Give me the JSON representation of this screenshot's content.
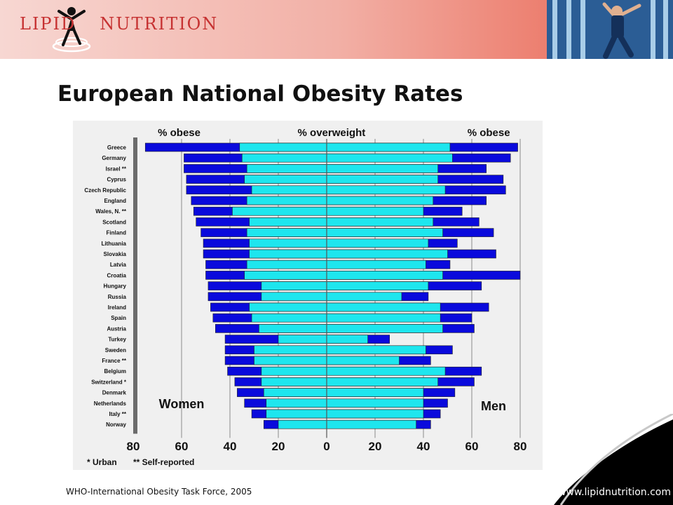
{
  "header": {
    "logo": "LIPID NUTRITION",
    "photo_icon": "athlete-photo"
  },
  "title": "European National Obesity Rates",
  "footer": {
    "source": "WHO-International  Obesity Task Force, 2005",
    "website": "www.lipidnutrition.com"
  },
  "colors": {
    "obese": "#0a0adc",
    "overweight": "#1ee6ee",
    "outline": "#222222",
    "header_accent": "#e9614e"
  },
  "chart_data": {
    "type": "bar",
    "orientation": "horizontal",
    "layout": "back-to-back",
    "title": "",
    "column_headers": {
      "left": "% obese",
      "center": "% overweight",
      "right": "% obese"
    },
    "side_labels": {
      "left": "Women",
      "right": "Men"
    },
    "footnotes": {
      "urban": "* Urban",
      "self_reported": "** Self-reported"
    },
    "x_ticks": [
      "80",
      "60",
      "40",
      "20",
      "0",
      "20",
      "40",
      "60",
      "80"
    ],
    "xlim": [
      -80,
      80
    ],
    "grid": "vertical",
    "categories": [
      "Greece",
      "Germany",
      "Israel **",
      "Cyprus",
      "Czech Republic",
      "England",
      "Wales, N. **",
      "Scotland",
      "Finland",
      "Lithuania",
      "Slovakia",
      "Latvia",
      "Croatia",
      "Hungary",
      "Russia",
      "Ireland",
      "Spain",
      "Austria",
      "Turkey",
      "Sweden",
      "France **",
      "Belgium",
      "Switzerland *",
      "Denmark",
      "Netherlands",
      "Italy **",
      "Norway"
    ],
    "series": [
      {
        "name": "Women % overweight",
        "values": [
          36,
          35,
          33,
          34,
          31,
          33,
          39,
          32,
          33,
          32,
          32,
          33,
          34,
          27,
          27,
          32,
          31,
          28,
          20,
          30,
          30,
          27,
          27,
          26,
          25,
          25,
          20
        ]
      },
      {
        "name": "Women % obese",
        "values": [
          75,
          59,
          59,
          58,
          58,
          56,
          55,
          54,
          52,
          51,
          51,
          50,
          50,
          49,
          49,
          48,
          47,
          46,
          42,
          42,
          42,
          41,
          38,
          37,
          34,
          31,
          26
        ]
      },
      {
        "name": "Men % overweight",
        "values": [
          51,
          52,
          46,
          46,
          49,
          44,
          40,
          44,
          48,
          42,
          50,
          41,
          48,
          42,
          31,
          47,
          47,
          48,
          17,
          41,
          30,
          49,
          46,
          40,
          40,
          40,
          37
        ]
      },
      {
        "name": "Men % obese",
        "values": [
          79,
          76,
          66,
          73,
          74,
          66,
          56,
          63,
          69,
          54,
          70,
          51,
          80,
          64,
          42,
          67,
          60,
          61,
          26,
          52,
          43,
          64,
          61,
          53,
          50,
          47,
          43
        ]
      }
    ]
  }
}
